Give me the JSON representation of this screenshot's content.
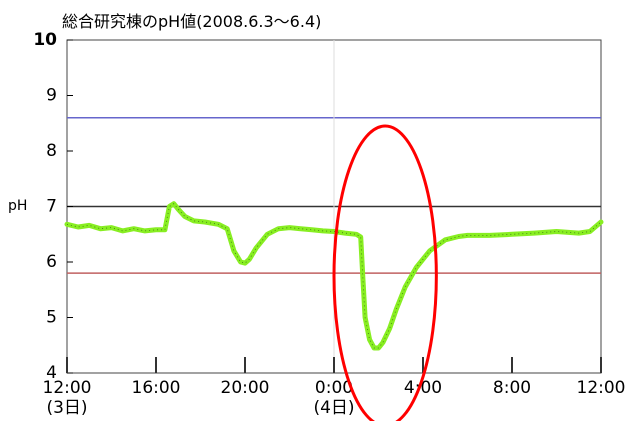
{
  "chart_data": {
    "type": "line",
    "title": "総合研究棟のpH値(2008.6.3〜6.4)",
    "ylabel": "pH",
    "xlabel": "",
    "ylim": [
      4,
      10
    ],
    "xlim": [
      12,
      36
    ],
    "x_unit": "hour",
    "grid": false,
    "y_ticks": [
      4,
      5,
      6,
      7,
      8,
      9,
      10
    ],
    "x_ticks": [
      {
        "x": 12,
        "label": "12:00",
        "sublabel": "(3日)"
      },
      {
        "x": 16,
        "label": "16:00",
        "sublabel": ""
      },
      {
        "x": 20,
        "label": "20:00",
        "sublabel": ""
      },
      {
        "x": 24,
        "label": "0:00",
        "sublabel": "(4日)"
      },
      {
        "x": 28,
        "label": "4:00",
        "sublabel": ""
      },
      {
        "x": 32,
        "label": "8:00",
        "sublabel": ""
      },
      {
        "x": 36,
        "label": "12:00",
        "sublabel": ""
      }
    ],
    "reference_lines": [
      {
        "y": 8.6,
        "color": "#6666cc"
      },
      {
        "y": 7.0,
        "color": "#333333"
      },
      {
        "y": 5.8,
        "color": "#c06060"
      }
    ],
    "series": [
      {
        "color": "#88ee22",
        "x": [
          12.0,
          12.5,
          13.0,
          13.5,
          14.0,
          14.5,
          15.0,
          15.5,
          16.0,
          16.4,
          16.6,
          16.8,
          17.0,
          17.3,
          17.7,
          18.2,
          18.8,
          19.2,
          19.5,
          19.8,
          20.0,
          20.2,
          20.5,
          21.0,
          21.5,
          22.0,
          22.5,
          23.0,
          23.5,
          24.0,
          24.5,
          25.0,
          25.2,
          25.3,
          25.4,
          25.6,
          25.8,
          26.0,
          26.2,
          26.5,
          26.8,
          27.2,
          27.7,
          28.3,
          29.0,
          29.6,
          30.0,
          31.0,
          32.0,
          33.0,
          34.0,
          35.0,
          35.5,
          36.0
        ],
        "values": [
          6.68,
          6.63,
          6.66,
          6.6,
          6.62,
          6.56,
          6.6,
          6.56,
          6.58,
          6.58,
          7.0,
          7.05,
          6.95,
          6.82,
          6.74,
          6.72,
          6.68,
          6.6,
          6.2,
          6.0,
          5.98,
          6.05,
          6.25,
          6.5,
          6.6,
          6.62,
          6.6,
          6.58,
          6.56,
          6.55,
          6.52,
          6.5,
          6.45,
          5.7,
          5.0,
          4.6,
          4.45,
          4.45,
          4.55,
          4.8,
          5.15,
          5.55,
          5.9,
          6.2,
          6.4,
          6.46,
          6.48,
          6.48,
          6.5,
          6.52,
          6.55,
          6.52,
          6.55,
          6.72
        ]
      }
    ],
    "annotations": [
      {
        "shape": "ellipse",
        "color": "#ff0000",
        "cx": 26.3,
        "cy": 5.75,
        "rx": 2.3,
        "ry": 2.7
      }
    ]
  }
}
